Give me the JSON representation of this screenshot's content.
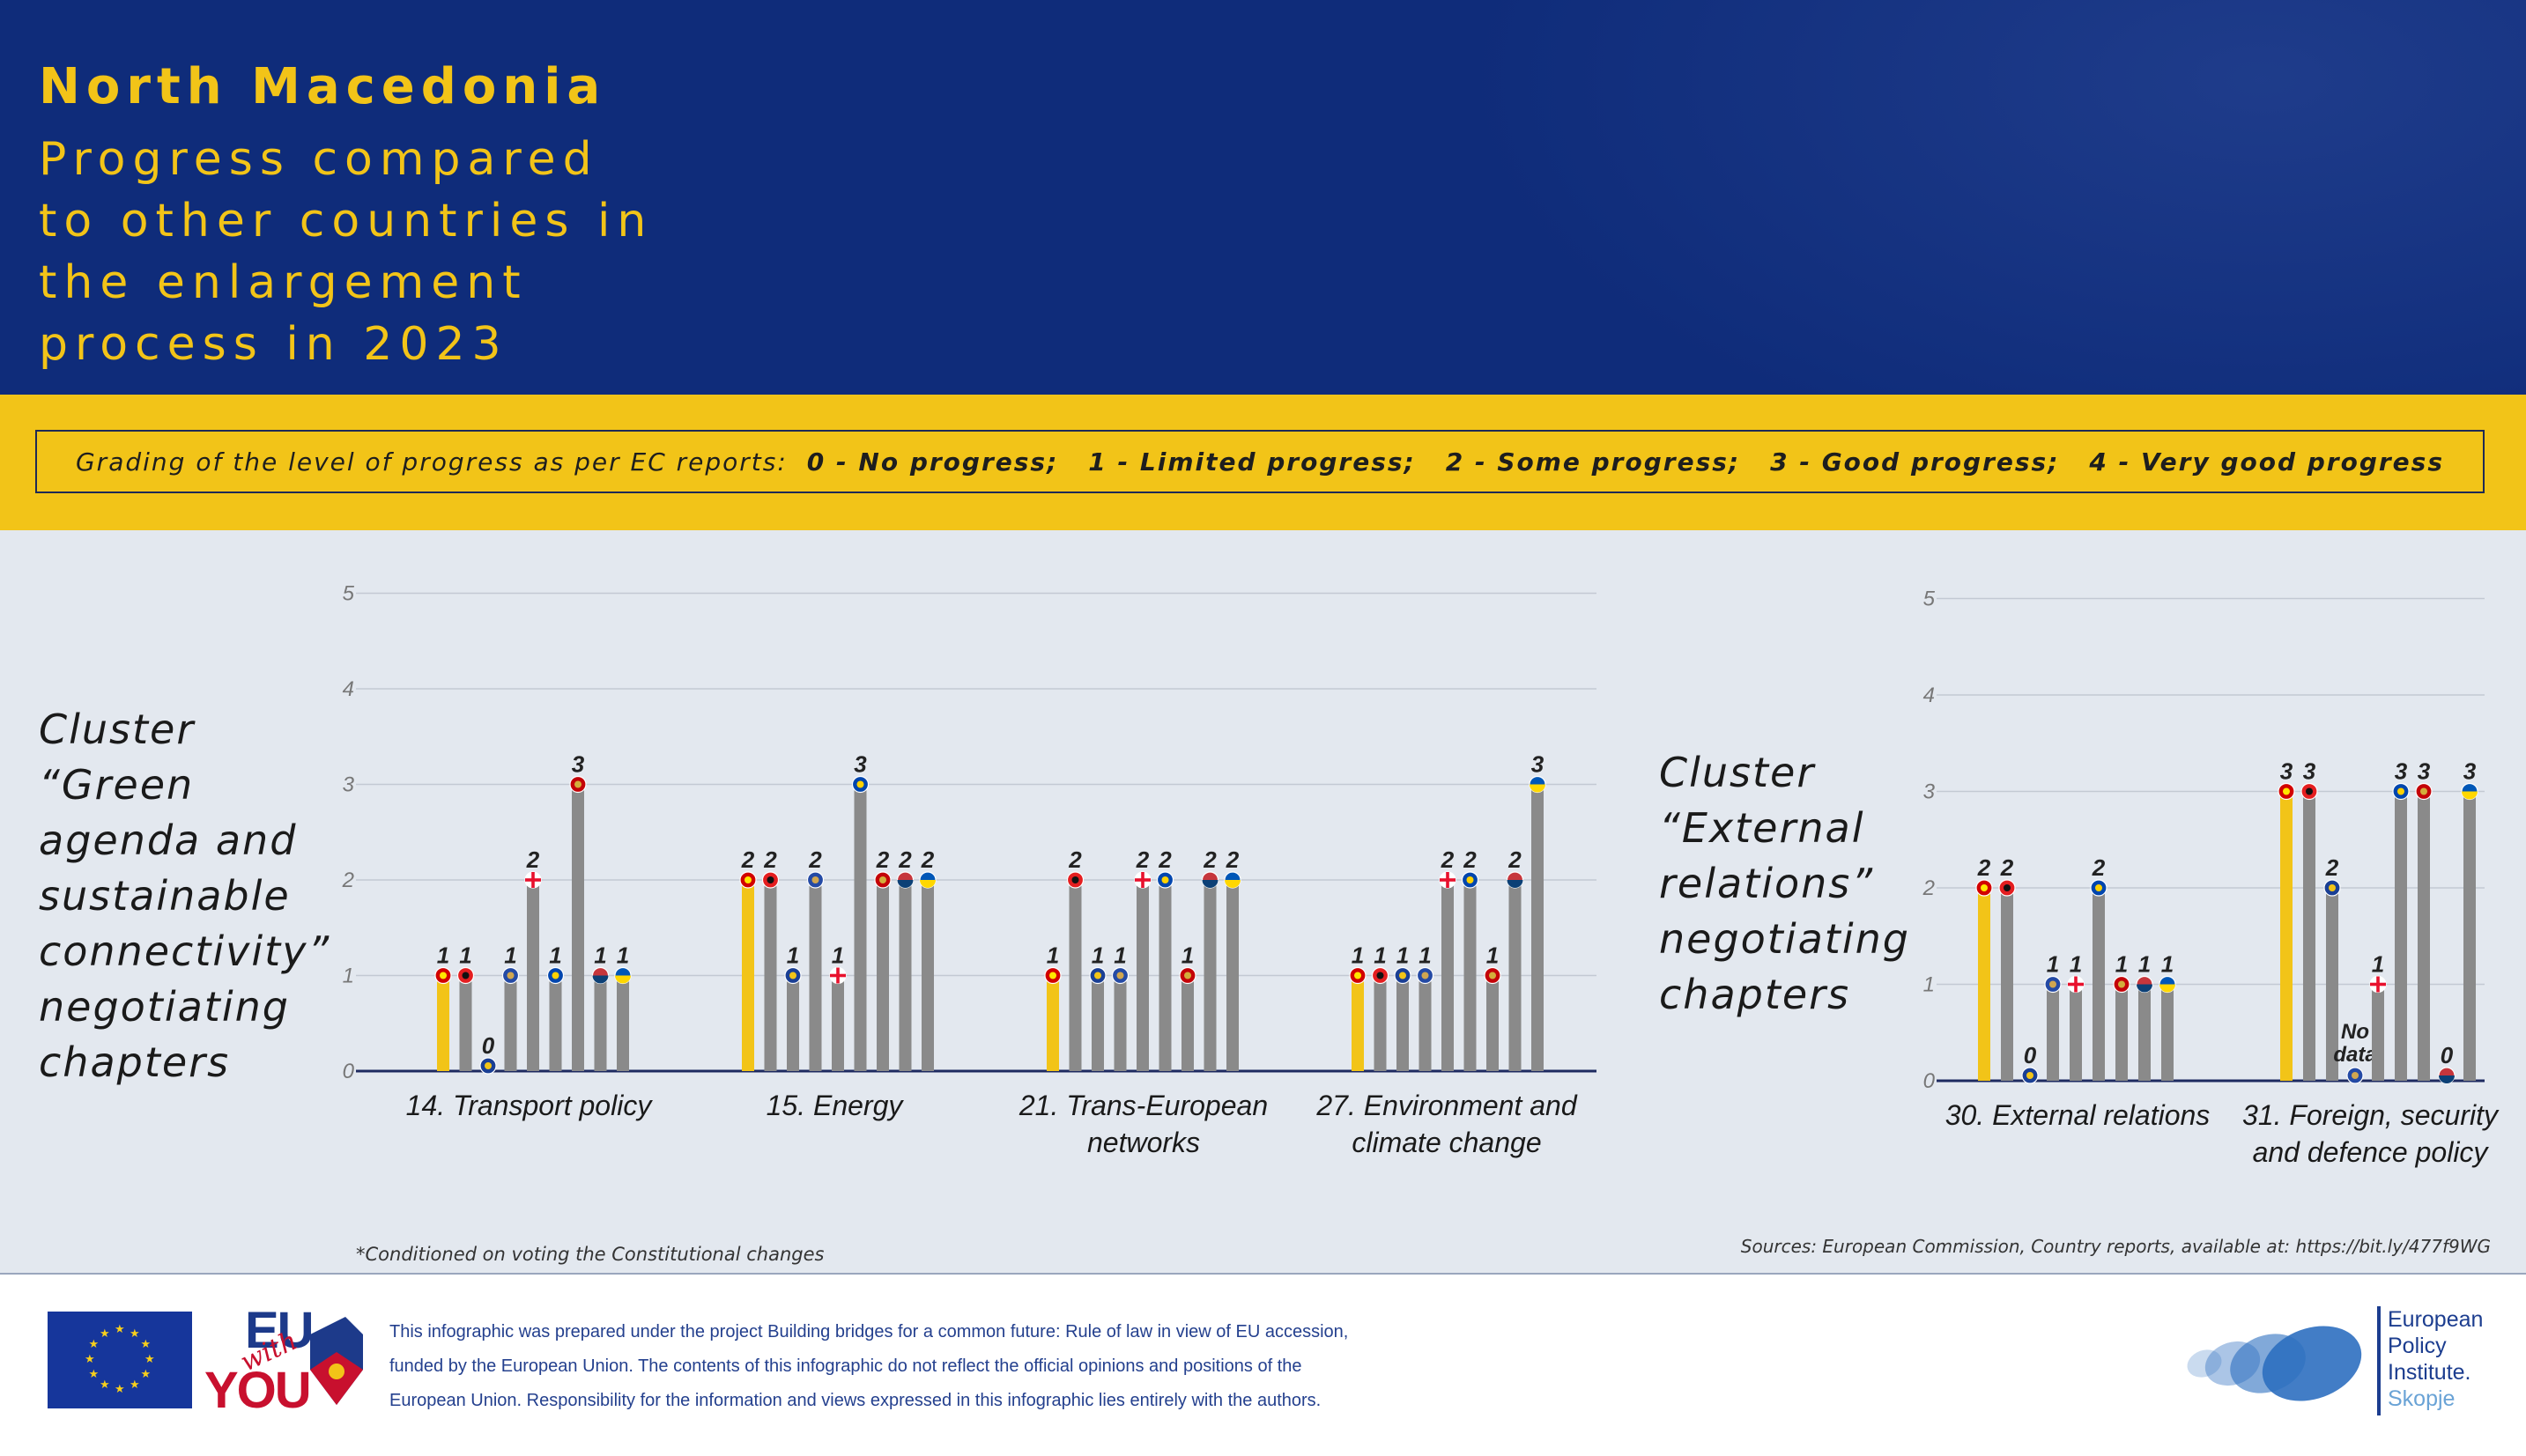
{
  "header": {
    "country": "North Macedonia",
    "subtitle": "Progress compared to other countries in the enlargement process in 2023"
  },
  "grading_legend": {
    "label": "Grading of the level of progress as per EC reports:",
    "grades": [
      "0 - No progress;",
      "1 - Limited progress;",
      "2 - Some progress;",
      "3 - Good progress;",
      "4 - Very good progress"
    ]
  },
  "clusters": [
    {
      "label": "Cluster\n“Green\nagenda and\nsustainable\nconnectivity”\nnegotiating\nchapters"
    },
    {
      "label": "Cluster\n“External\nrelations”\nnegotiating\nchapters"
    }
  ],
  "chart_data": [
    {
      "type": "bar",
      "ylim": [
        0,
        5
      ],
      "yticks": [
        "0",
        "1",
        "2",
        "3",
        "4",
        "5"
      ],
      "grid": true,
      "categories": [
        "14. Transport policy",
        "15. Energy",
        "21. Trans-European networks",
        "27. Environment and climate change"
      ],
      "series": [
        {
          "values": [
            1,
            2,
            1,
            1
          ],
          "flag": "north-macedonia",
          "color": "#f2c418"
        },
        {
          "values": [
            1,
            2,
            2,
            1
          ],
          "flag": "albania",
          "color": "#8a8a8a"
        },
        {
          "values": [
            0,
            1,
            1,
            1
          ],
          "flag": "bosnia-and-herzegovina",
          "color": "#8a8a8a"
        },
        {
          "values": [
            1,
            2,
            1,
            1
          ],
          "flag": "kosovo",
          "color": "#8a8a8a"
        },
        {
          "values": [
            2,
            1,
            2,
            2
          ],
          "flag": "georgia",
          "color": "#8a8a8a"
        },
        {
          "values": [
            1,
            3,
            2,
            2
          ],
          "flag": "moldova",
          "color": "#8a8a8a"
        },
        {
          "values": [
            3,
            2,
            1,
            1
          ],
          "flag": "montenegro",
          "color": "#8a8a8a"
        },
        {
          "values": [
            1,
            2,
            2,
            2
          ],
          "flag": "serbia",
          "color": "#8a8a8a"
        },
        {
          "values": [
            1,
            2,
            2,
            3
          ],
          "flag": "ukraine",
          "color": "#8a8a8a"
        }
      ],
      "value_labels": [
        [
          "1",
          "1",
          "0",
          "1",
          "2",
          "1",
          "3",
          "1",
          "1"
        ],
        [
          "2",
          "2",
          "1",
          "2",
          "1",
          "3",
          "2",
          "2",
          "2"
        ],
        [
          "1",
          "2",
          "1",
          "1",
          "2",
          "2",
          "1",
          "2",
          "2"
        ],
        [
          "1",
          "1",
          "1",
          "1",
          "2",
          "2",
          "1",
          "2",
          "3"
        ]
      ],
      "x_labels": [
        [
          "14. Transport policy"
        ],
        [
          "15. Energy"
        ],
        [
          "21. Trans-European",
          "networks"
        ],
        [
          "27. Environment and",
          "climate change"
        ]
      ]
    },
    {
      "type": "bar",
      "ylim": [
        0,
        5
      ],
      "yticks": [
        "0",
        "1",
        "2",
        "3",
        "4",
        "5"
      ],
      "grid": true,
      "categories": [
        "30. External relations",
        "31. Foreign, security and defence policy"
      ],
      "series": [
        {
          "values": [
            2,
            3
          ],
          "flag": "north-macedonia",
          "color": "#f2c418"
        },
        {
          "values": [
            2,
            3
          ],
          "flag": "albania",
          "color": "#8a8a8a"
        },
        {
          "values": [
            0,
            2
          ],
          "flag": "bosnia-and-herzegovina",
          "color": "#8a8a8a"
        },
        {
          "values": [
            1,
            null
          ],
          "flag": "kosovo",
          "color": "#8a8a8a"
        },
        {
          "values": [
            1,
            1
          ],
          "flag": "georgia",
          "color": "#8a8a8a"
        },
        {
          "values": [
            2,
            3
          ],
          "flag": "moldova",
          "color": "#8a8a8a"
        },
        {
          "values": [
            1,
            3
          ],
          "flag": "montenegro",
          "color": "#8a8a8a"
        },
        {
          "values": [
            1,
            0
          ],
          "flag": "serbia",
          "color": "#8a8a8a"
        },
        {
          "values": [
            1,
            3
          ],
          "flag": "ukraine",
          "color": "#8a8a8a"
        }
      ],
      "value_labels": [
        [
          "2",
          "2",
          "0",
          "1",
          "1",
          "2",
          "1",
          "1",
          "1"
        ],
        [
          "3",
          "3",
          "2",
          "No data",
          "1",
          "3",
          "3",
          "0",
          "3"
        ]
      ],
      "x_labels": [
        [
          "30. External relations"
        ],
        [
          "31. Foreign, security",
          "and defence policy"
        ]
      ]
    }
  ],
  "footnote": "*Conditioned on voting the Constitutional changes",
  "sources": "Sources: European Commission, Country reports, available at: https://bit.ly/477f9WG",
  "footer": {
    "eu_with_you_logo": {
      "line1": "EU",
      "line2": "with",
      "line3": "YOU"
    },
    "disclaimer": "This infographic was prepared under the project Building bridges for a common future: Rule of law in view of EU accession, funded by the European Union. The contents of this infographic do not reflect the official opinions and positions of the European Union. Responsibility for the information and views expressed in this infographic lies entirely with the authors.",
    "epi_logo": {
      "line1": "European",
      "line2": "Policy",
      "line3": "Institute.",
      "line4": "Skopje"
    }
  },
  "colors": {
    "navy": "#0f2c7a",
    "yellow": "#f2c418",
    "panel": "#e3e8ef",
    "bar_gray": "#8a8a8a"
  }
}
